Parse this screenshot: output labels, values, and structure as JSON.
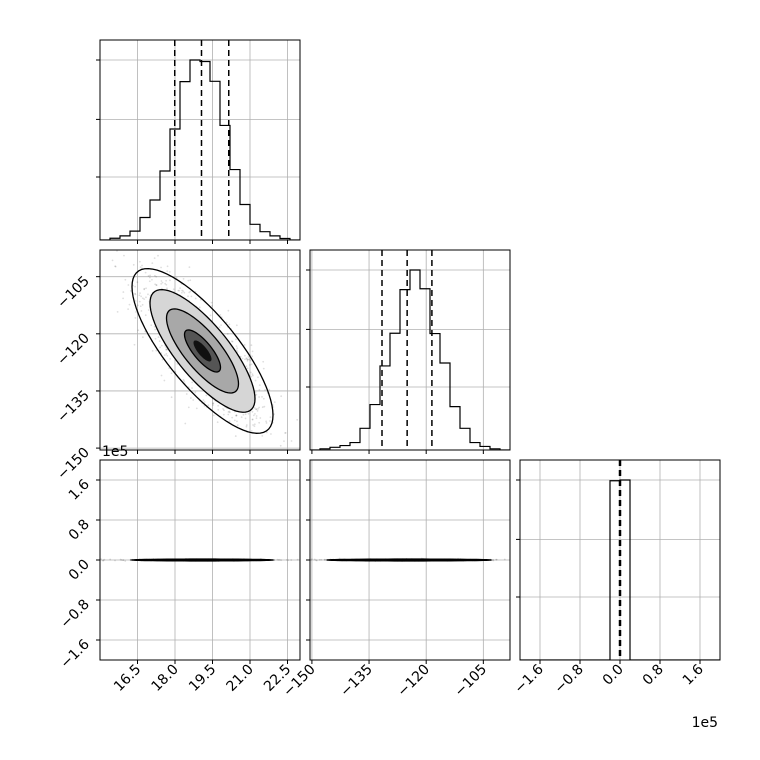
{
  "chart_data": {
    "type": "corner",
    "parameters": [
      {
        "offset_label": "",
        "ticks": [
          "16.5",
          "18.0",
          "19.5",
          "21.0",
          "22.5"
        ],
        "tick_values": [
          16.5,
          18.0,
          19.5,
          21.0,
          22.5
        ],
        "range": [
          15.0,
          23.0
        ]
      },
      {
        "offset_label": "",
        "ticks": [
          "−150",
          "−135",
          "−120",
          "−105"
        ],
        "tick_values": [
          -150,
          -135,
          -120,
          -105
        ],
        "range": [
          -150.5,
          -98.0
        ]
      },
      {
        "offset_label": "1e5",
        "ticks": [
          "−1.6",
          "−0.8",
          "0.0",
          "0.8",
          "1.6"
        ],
        "tick_values": [
          -1.6,
          -0.8,
          0.0,
          0.8,
          1.6
        ],
        "range": [
          -2.0,
          2.0
        ]
      }
    ],
    "histograms": [
      {
        "parameter": 0,
        "bin_edges": [
          15.0,
          15.4,
          15.8,
          16.2,
          16.6,
          17.0,
          17.4,
          17.8,
          18.2,
          18.6,
          19.0,
          19.4,
          19.8,
          20.2,
          20.6,
          21.0,
          21.4,
          21.8,
          22.2,
          22.6,
          23.0
        ],
        "counts": [
          0,
          6,
          14,
          30,
          76,
          135,
          233,
          375,
          535,
          608,
          603,
          536,
          387,
          238,
          120,
          53,
          28,
          14,
          5,
          0
        ],
        "quantiles": [
          17.99,
          19.06,
          20.15
        ]
      },
      {
        "parameter": 1,
        "bin_edges": [
          -150.5,
          -147.875,
          -145.25,
          -142.625,
          -140.0,
          -137.375,
          -134.75,
          -132.125,
          -129.5,
          -126.875,
          -124.25,
          -121.625,
          -119.0,
          -116.375,
          -113.75,
          -111.125,
          -108.5,
          -105.875,
          -103.25,
          -100.625,
          -98.0
        ],
        "counts": [
          0,
          4,
          9,
          15,
          25,
          73,
          153,
          283,
          393,
          540,
          606,
          543,
          392,
          293,
          146,
          73,
          25,
          12,
          4,
          0
        ],
        "quantiles": [
          -131.6,
          -125.0,
          -118.5
        ]
      },
      {
        "parameter": 2,
        "bin_edges": [
          -2.0,
          -1.8,
          -1.6,
          -1.4,
          -1.2,
          -1.0,
          -0.8,
          -0.6,
          -0.4,
          -0.2,
          -0.0,
          0.2,
          0.4,
          0.6,
          0.8,
          1.0,
          1.2,
          1.4,
          1.6,
          1.8,
          2.0
        ],
        "counts": [
          0,
          0,
          0,
          0,
          0,
          0,
          0,
          0,
          0,
          4990,
          5010,
          0,
          0,
          0,
          0,
          0,
          0,
          0,
          0,
          0
        ],
        "quantiles": [
          -0.01,
          0.0,
          0.01
        ]
      }
    ],
    "pairs": [
      {
        "x": 0,
        "y": 1,
        "mean": [
          19.1,
          -124.5
        ],
        "sd": [
          1.2,
          9.2
        ],
        "rho": -0.78
      },
      {
        "x": 0,
        "y": 2,
        "mean": [
          19.1,
          0.0
        ],
        "sd": [
          1.2,
          0.008
        ],
        "rho": 0.0
      },
      {
        "x": 1,
        "y": 2,
        "mean": [
          -124.5,
          0.0
        ],
        "sd": [
          9.2,
          0.008
        ],
        "rho": 0.0
      }
    ],
    "grid": true
  }
}
